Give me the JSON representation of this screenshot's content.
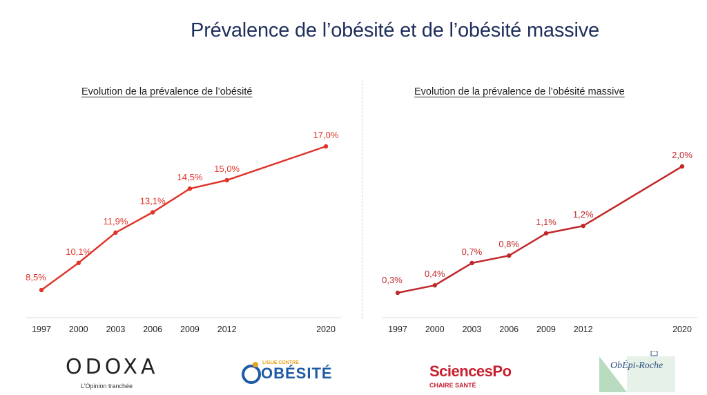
{
  "title": "Prévalence de l’obésité et de l’obésité massive",
  "chart_data": [
    {
      "type": "line",
      "title": "Evolution de la prévalence de l’obésité",
      "x": [
        1997,
        2000,
        2003,
        2006,
        2009,
        2012,
        2020
      ],
      "values": [
        8.5,
        10.1,
        11.9,
        13.1,
        14.5,
        15.0,
        17.0
      ],
      "data_labels": [
        "8,5%",
        "10,1%",
        "11,9%",
        "13,1%",
        "14,5%",
        "15,0%",
        "17,0%"
      ],
      "tick_labels": [
        "1997",
        "2000",
        "2003",
        "2006",
        "2009",
        "2012",
        "2020"
      ],
      "color": "#e0342a",
      "grid": false
    },
    {
      "type": "line",
      "title": "Evolution de la prévalence de l’obésité massive",
      "x": [
        1997,
        2000,
        2003,
        2006,
        2009,
        2012,
        2020
      ],
      "values": [
        0.3,
        0.4,
        0.7,
        0.8,
        1.1,
        1.2,
        2.0
      ],
      "data_labels": [
        "0,3%",
        "0,4%",
        "0,7%",
        "0,8%",
        "1,1%",
        "1,2%",
        "2,0%"
      ],
      "tick_labels": [
        "1997",
        "2000",
        "2003",
        "2006",
        "2009",
        "2012",
        "2020"
      ],
      "color": "#c0282a",
      "grid": false
    }
  ],
  "logos": {
    "odoxa": {
      "name": "ODOXA",
      "tagline": "L’Opinion tranchée"
    },
    "ligue": {
      "top": "LIGUE CONTRE",
      "name": "OBÉSITÉ"
    },
    "sciencespo": {
      "name": "SciencesPo",
      "sub": "CHAIRE SANTÉ"
    },
    "obepi": {
      "name": "ObÉpi-Roche"
    }
  }
}
